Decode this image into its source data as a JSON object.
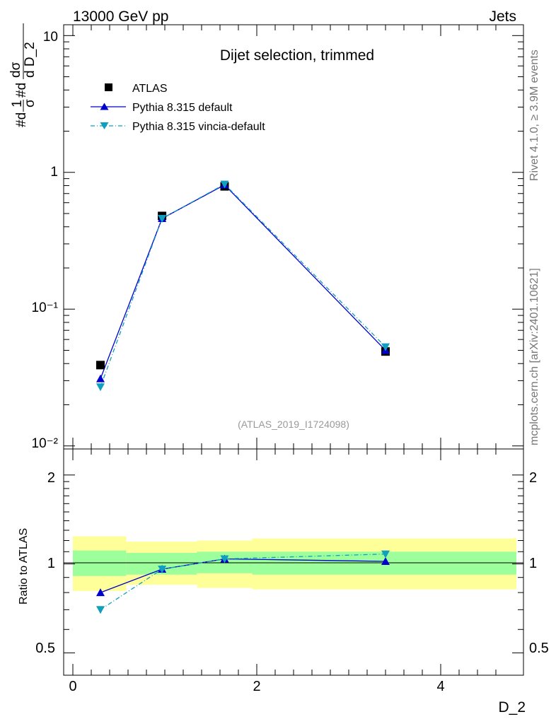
{
  "header": {
    "left": "13000 GeV pp",
    "right": "Jets"
  },
  "side_text": {
    "rivet": "Rivet 4.1.0, ≥ 3.9M events",
    "mcplots": "mcplots.cern.ch [arXiv:2401.10621]"
  },
  "main_panel": {
    "title": "Dijet selection, trimmed",
    "ylabel_parts": [
      "#d",
      "1",
      "σ",
      "#d",
      "dσ",
      "d D_2"
    ],
    "ytick_labels": [
      "10⁻²",
      "10⁻¹",
      "1",
      "10"
    ],
    "watermark": "(ATLAS_2019_I1724098)"
  },
  "ratio_panel": {
    "ylabel": "Ratio to ATLAS",
    "ytick_labels": [
      "0.5",
      "1",
      "2"
    ],
    "xtick_labels": [
      "0",
      "2",
      "4"
    ],
    "xlabel": "D_2"
  },
  "chart_data": {
    "type": "line",
    "yscale": "log",
    "xlim": [
      -0.1,
      4.9
    ],
    "ylim": [
      0.0095,
      12
    ],
    "ratio_ylim": [
      0.42,
      2.45
    ],
    "legend_position": "top-left",
    "bins": [
      {
        "lo": -0.1,
        "hi": 0.58
      },
      {
        "lo": 0.58,
        "hi": 1.35
      },
      {
        "lo": 1.35,
        "hi": 1.95
      },
      {
        "lo": 1.95,
        "hi": 4.9
      }
    ],
    "x": [
      0.3,
      0.97,
      1.65,
      3.4
    ],
    "series": [
      {
        "name": "ATLAS",
        "values": [
          0.039,
          0.48,
          0.79,
          0.049
        ],
        "color": "#000000",
        "marker": "square"
      },
      {
        "name": "Pythia 8.315 default",
        "values": [
          0.031,
          0.46,
          0.81,
          0.05
        ],
        "color": "#0000cc",
        "marker": "triangle-up",
        "line": "solid"
      },
      {
        "name": "Pythia 8.315 vincia-default",
        "values": [
          0.027,
          0.46,
          0.82,
          0.053
        ],
        "color": "#119fbf",
        "marker": "triangle-down",
        "line": "dashdot"
      }
    ],
    "ratio": [
      {
        "name": "Pythia 8.315 default",
        "values": [
          0.8,
          0.96,
          1.04,
          1.02
        ]
      },
      {
        "name": "Pythia 8.315 vincia-default",
        "values": [
          0.7,
          0.96,
          1.04,
          1.08
        ]
      }
    ],
    "uncertainty_bands": {
      "stat_fill": "#9cff9c",
      "total_fill": "#ffff99",
      "inner": [
        [
          0.91,
          1.11
        ],
        [
          0.92,
          1.09
        ],
        [
          0.93,
          1.1
        ],
        [
          0.92,
          1.1
        ]
      ],
      "outer": [
        [
          0.81,
          1.24
        ],
        [
          0.85,
          1.19
        ],
        [
          0.83,
          1.2
        ],
        [
          0.82,
          1.22
        ]
      ]
    }
  }
}
